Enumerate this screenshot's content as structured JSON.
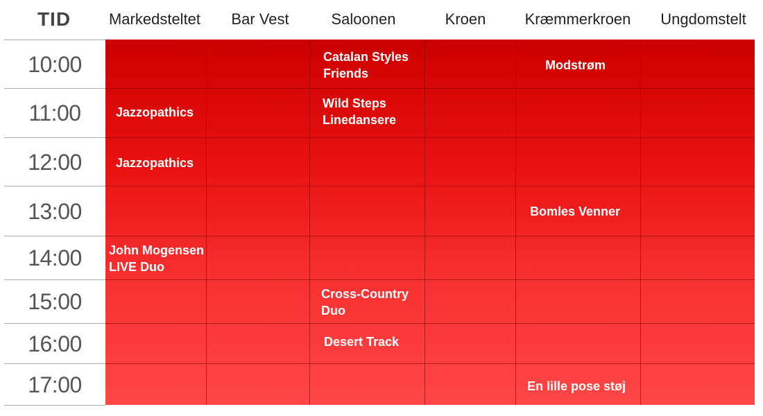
{
  "header": {
    "time_label": "TID",
    "stages": [
      "Markedsteltet",
      "Bar Vest",
      "Saloonen",
      "Kroen",
      "Kræmmerkroen",
      "Ungdomstelt"
    ]
  },
  "times": [
    "10:00",
    "11:00",
    "12:00",
    "13:00",
    "14:00",
    "15:00",
    "16:00",
    "17:00"
  ],
  "events": {
    "catalan": "Catalan Styles\nFriends",
    "modstrom": "Modstrøm",
    "jazzo1": "Jazzopathics",
    "wildsteps": "Wild Steps\nLinedansere",
    "jazzo2": "Jazzopathics",
    "bomles": "Bomles Venner",
    "john": "John Mogensen\nLIVE Duo",
    "crosscountry": "Cross-Country\nDuo",
    "desert": "Desert Track",
    "poses": "En lille pose støj"
  },
  "colors": {
    "grid_top": "#cc0000",
    "grid_bottom": "#ff4646",
    "event_text": "#ffffff"
  }
}
